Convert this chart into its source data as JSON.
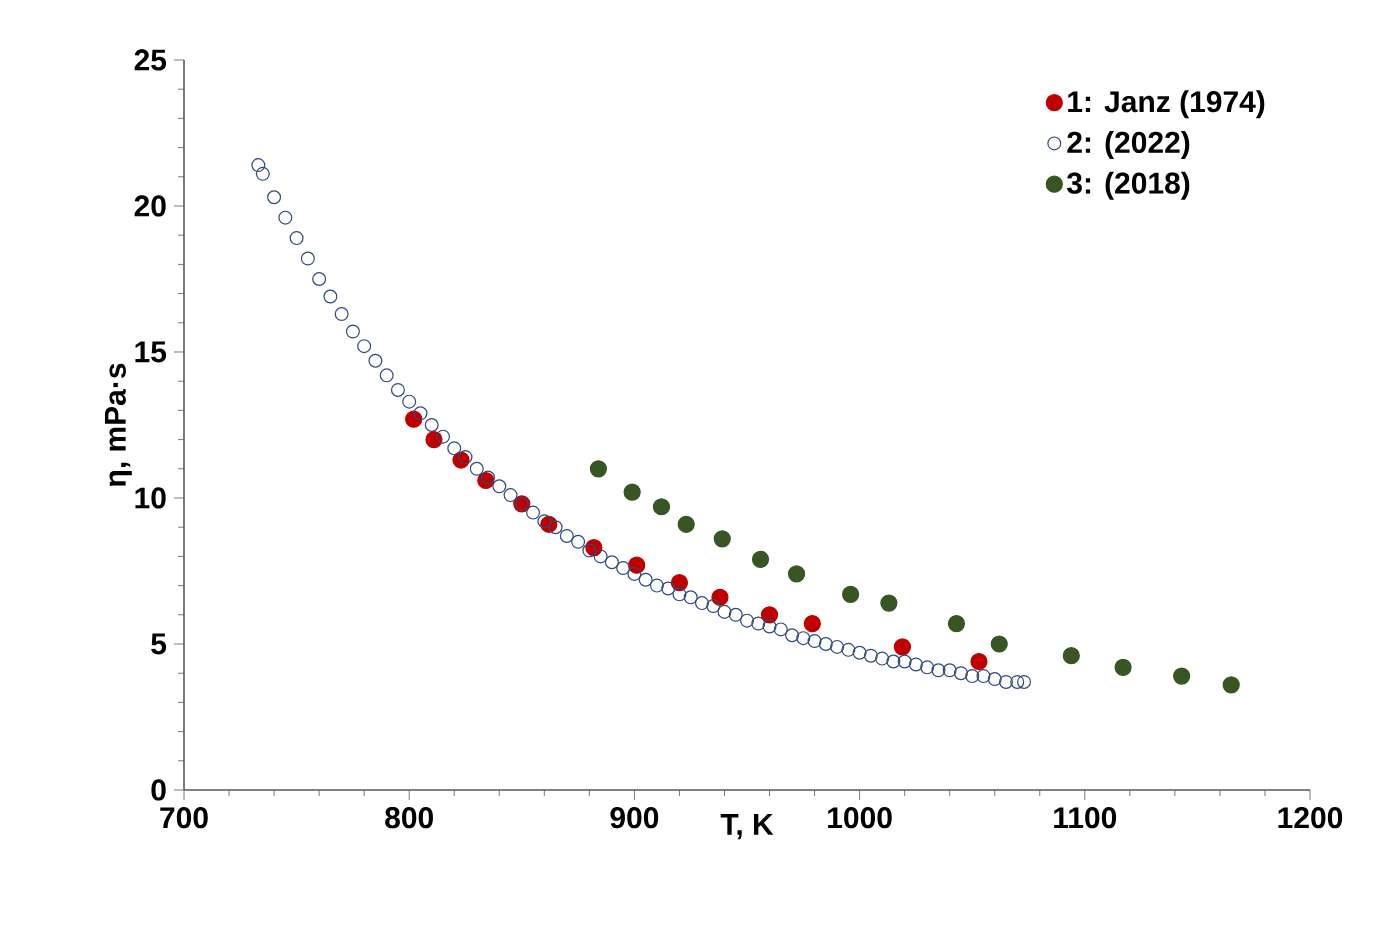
{
  "chart_data": {
    "type": "scatter",
    "xlabel": "T, K",
    "ylabel": "η, mPa·s",
    "xlim": [
      700,
      1200
    ],
    "ylim": [
      0,
      25
    ],
    "xticks": [
      700,
      800,
      900,
      1000,
      1100,
      1200
    ],
    "yticks": [
      0,
      5,
      10,
      15,
      20,
      25
    ],
    "grid": false,
    "legend": "top right",
    "series": [
      {
        "name": "1: Janz (1974)",
        "color": "#c00000",
        "marker": "circle",
        "x": [
          802,
          811,
          823,
          834,
          850,
          862,
          882,
          901,
          920,
          938,
          960,
          979,
          1019,
          1053
        ],
        "values": [
          12.7,
          12.0,
          11.3,
          10.6,
          9.8,
          9.1,
          8.3,
          7.7,
          7.1,
          6.6,
          6.0,
          5.7,
          4.9,
          4.4
        ]
      },
      {
        "name": "2: (2022)",
        "color": "#2f4b7c",
        "marker": "open circle",
        "x": [
          733,
          735,
          740,
          745,
          750,
          755,
          760,
          765,
          770,
          775,
          780,
          785,
          790,
          795,
          800,
          805,
          810,
          815,
          820,
          825,
          830,
          835,
          840,
          845,
          850,
          855,
          860,
          865,
          870,
          875,
          880,
          885,
          890,
          895,
          900,
          905,
          910,
          915,
          920,
          925,
          930,
          935,
          940,
          945,
          950,
          955,
          960,
          965,
          970,
          975,
          980,
          985,
          990,
          995,
          1000,
          1005,
          1010,
          1015,
          1020,
          1025,
          1030,
          1035,
          1040,
          1045,
          1050,
          1055,
          1060,
          1065,
          1070,
          1073
        ],
        "values": [
          21.4,
          21.1,
          20.3,
          19.6,
          18.9,
          18.2,
          17.5,
          16.9,
          16.3,
          15.7,
          15.2,
          14.7,
          14.2,
          13.7,
          13.3,
          12.9,
          12.5,
          12.1,
          11.7,
          11.4,
          11.0,
          10.7,
          10.4,
          10.1,
          9.8,
          9.5,
          9.2,
          9.0,
          8.7,
          8.5,
          8.2,
          8.0,
          7.8,
          7.6,
          7.4,
          7.2,
          7.0,
          6.9,
          6.7,
          6.6,
          6.4,
          6.3,
          6.1,
          6.0,
          5.8,
          5.7,
          5.6,
          5.5,
          5.3,
          5.2,
          5.1,
          5.0,
          4.9,
          4.8,
          4.7,
          4.6,
          4.5,
          4.4,
          4.4,
          4.3,
          4.2,
          4.1,
          4.1,
          4.0,
          3.9,
          3.9,
          3.8,
          3.7,
          3.7,
          3.7
        ]
      },
      {
        "name": "3: (2018)",
        "color": "#375623",
        "marker": "circle",
        "x": [
          884,
          899,
          912,
          923,
          939,
          956,
          972,
          996,
          1013,
          1043,
          1062,
          1094,
          1117,
          1143,
          1165
        ],
        "values": [
          11.0,
          10.2,
          9.7,
          9.1,
          8.6,
          7.9,
          7.4,
          6.7,
          6.4,
          5.7,
          5.0,
          4.6,
          4.2,
          3.9,
          3.6
        ]
      }
    ]
  }
}
